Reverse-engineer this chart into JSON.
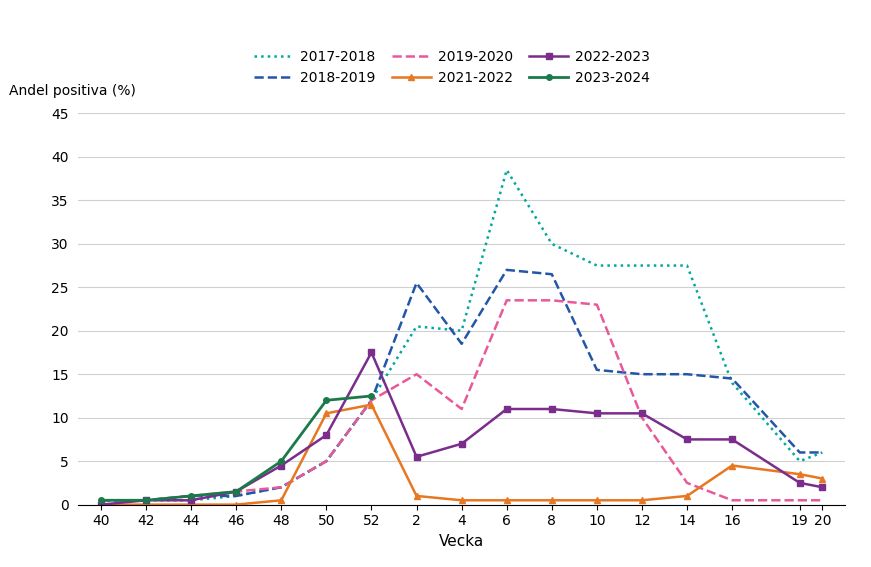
{
  "x_positions": [
    40,
    42,
    44,
    46,
    48,
    50,
    52,
    54,
    56,
    58,
    60,
    62,
    64,
    66,
    68,
    71,
    72
  ],
  "series": {
    "2017-2018": {
      "color": "#00A89D",
      "linestyle": "dotted",
      "linewidth": 1.8,
      "marker": null,
      "values": [
        0.5,
        0.5,
        0.5,
        1.0,
        2.0,
        5.0,
        12.0,
        20.5,
        20.0,
        38.5,
        30.0,
        27.5,
        27.5,
        27.5,
        14.0,
        5.0,
        6.0
      ]
    },
    "2018-2019": {
      "color": "#2356A8",
      "linestyle": "dashed",
      "linewidth": 1.8,
      "marker": null,
      "values": [
        0.5,
        0.5,
        1.0,
        1.0,
        2.0,
        5.0,
        12.0,
        25.5,
        18.5,
        27.0,
        26.5,
        15.5,
        15.0,
        15.0,
        14.5,
        6.0,
        6.0
      ]
    },
    "2019-2020": {
      "color": "#E8599A",
      "linestyle": "dashed",
      "linewidth": 1.8,
      "marker": null,
      "values": [
        0.5,
        0.5,
        1.0,
        1.5,
        2.0,
        5.0,
        12.0,
        15.0,
        11.0,
        23.5,
        23.5,
        23.0,
        10.0,
        2.5,
        0.5,
        0.5,
        0.5
      ]
    },
    "2021-2022": {
      "color": "#E87722",
      "linestyle": "solid",
      "linewidth": 1.8,
      "marker": "^",
      "markersize": 5,
      "values": [
        0.0,
        0.0,
        0.0,
        0.0,
        0.5,
        10.5,
        11.5,
        1.0,
        0.5,
        0.5,
        0.5,
        0.5,
        0.5,
        1.0,
        4.5,
        3.5,
        3.0
      ]
    },
    "2022-2023": {
      "color": "#7B2D8B",
      "linestyle": "solid",
      "linewidth": 1.8,
      "marker": "s",
      "markersize": 5,
      "values": [
        0.0,
        0.5,
        0.5,
        1.5,
        4.5,
        8.0,
        17.5,
        5.5,
        7.0,
        11.0,
        11.0,
        10.5,
        10.5,
        7.5,
        7.5,
        2.5,
        2.0
      ]
    },
    "2023-2024": {
      "color": "#1A7A4A",
      "linestyle": "solid",
      "linewidth": 2.0,
      "marker": "o",
      "markersize": 4,
      "values": [
        0.5,
        0.5,
        1.0,
        1.5,
        5.0,
        12.0,
        12.5,
        null,
        null,
        null,
        null,
        null,
        null,
        null,
        null,
        null,
        null
      ]
    }
  },
  "xlabel": "Vecka",
  "ylabel": "Andel positiva (%)",
  "ylim": [
    0,
    45
  ],
  "yticks": [
    0,
    5,
    10,
    15,
    20,
    25,
    30,
    35,
    40,
    45
  ],
  "xtick_positions": [
    40,
    42,
    44,
    46,
    48,
    50,
    52,
    54,
    56,
    58,
    60,
    62,
    64,
    66,
    68,
    71,
    72
  ],
  "xtick_labels": [
    "40",
    "42",
    "44",
    "46",
    "48",
    "50",
    "52",
    "2",
    "4",
    "6",
    "8",
    "10",
    "12",
    "14",
    "16",
    "19",
    "20"
  ],
  "title": "",
  "background_color": "#ffffff",
  "grid_color": "#d0d0d0",
  "legend_row1": [
    "2017-2018",
    "2018-2019",
    "2019-2020"
  ],
  "legend_row2": [
    "2021-2022",
    "2022-2023",
    "2023-2024"
  ]
}
